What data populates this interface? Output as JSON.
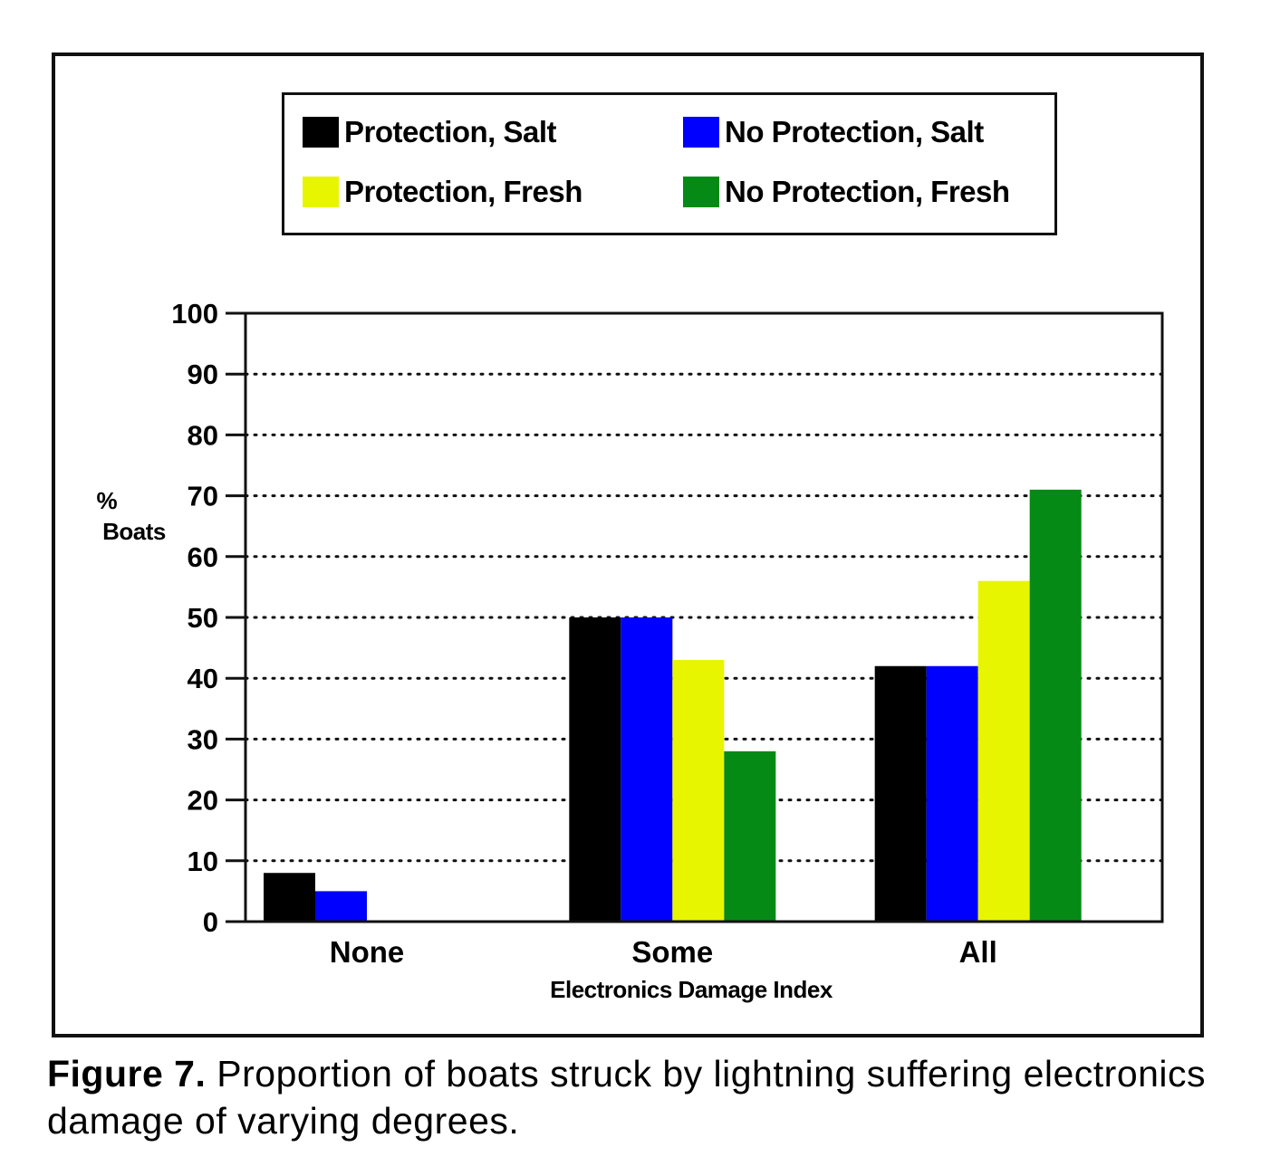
{
  "chart_data": {
    "type": "bar",
    "categories": [
      "None",
      "Some",
      "All"
    ],
    "series": [
      {
        "name": "Protection, Salt",
        "color": "#000000",
        "values": [
          8,
          50,
          42
        ]
      },
      {
        "name": "No Protection, Salt",
        "color": "#0000ff",
        "values": [
          5,
          50,
          42
        ]
      },
      {
        "name": "Protection, Fresh",
        "color": "#e8f500",
        "values": [
          0,
          43,
          56
        ]
      },
      {
        "name": "No Protection, Fresh",
        "color": "#058a16",
        "values": [
          0,
          28,
          71
        ]
      }
    ],
    "xlabel": "Electronics Damage Index",
    "ylabel_lines": [
      "%",
      "Boats"
    ],
    "ylim": [
      0,
      100
    ],
    "yticks": [
      0,
      10,
      20,
      30,
      40,
      50,
      60,
      70,
      80,
      90,
      100
    ],
    "grid": "dotted horizontal",
    "legend_placement": "top"
  },
  "caption": {
    "label": "Figure 7.",
    "text": "Proportion of boats struck by lightning suffering electronics damage of varying degrees."
  }
}
